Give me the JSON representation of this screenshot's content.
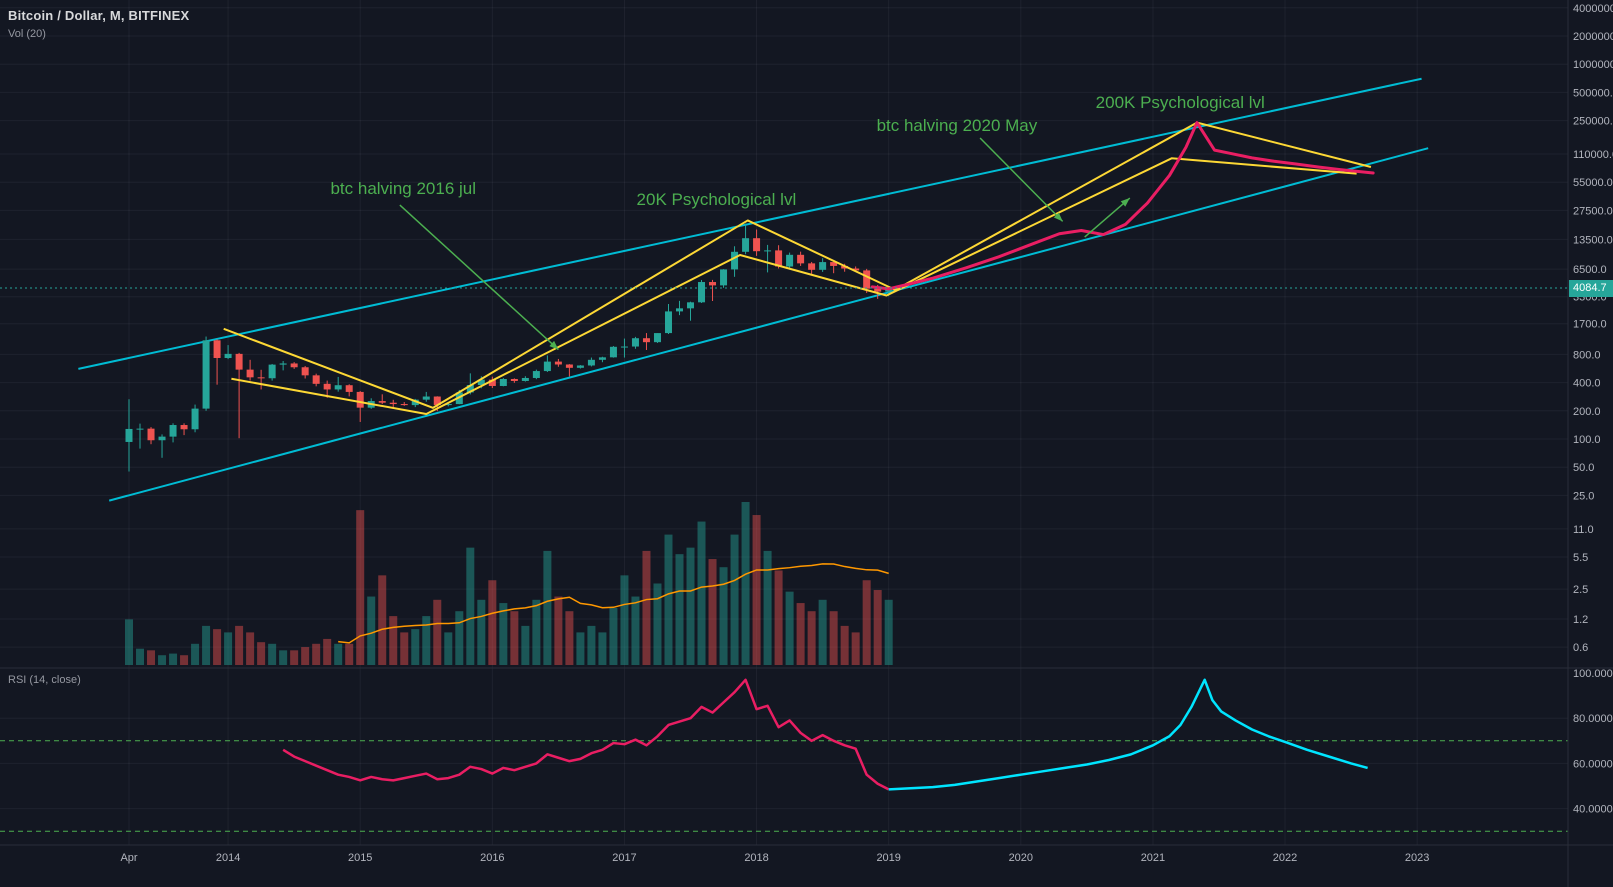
{
  "header": {
    "symbol_title": "Bitcoin / Dollar, M, BITFINEX",
    "indicator_label": "Vol (20)"
  },
  "rsi_header": {
    "label": "RSI (14, close)"
  },
  "last_price": {
    "value": "4084.7"
  },
  "colors": {
    "background": "#131722",
    "grid": "rgba(240,243,250,0.055)",
    "axis_text": "#b2b5be",
    "up": "#26a69a",
    "down": "#ef5350",
    "volume_up": "rgba(38,166,154,0.45)",
    "volume_down": "rgba(239,83,80,0.45)",
    "volume_ma": "#ff9800",
    "channel": "#00bcd4",
    "pattern": "#fdd835",
    "projection": "#e91e63",
    "rsi_line": "#e91e63",
    "rsi_projection": "#00e5ff",
    "rsi_levels": "#4caf50",
    "annotation": "#4caf50",
    "last_price_line": "#26a69a",
    "badge_bg": "#26a69a",
    "badge_text": "#ffffff",
    "separator": "#2a2e39"
  },
  "price_axis_labels": [
    "4000000.0",
    "2000000.0",
    "1000000.0",
    "500000.0",
    "250000.0",
    "110000.0",
    "55000.0",
    "27500.0",
    "13500.0",
    "6500.0",
    "3300.0",
    "1700.0",
    "800.0",
    "400.0",
    "200.0",
    "100.0",
    "50.0",
    "25.0",
    "11.0",
    "5.5",
    "2.5",
    "1.2",
    "0.6"
  ],
  "rsi_axis_labels": [
    {
      "text": "100.0000",
      "v": 100
    },
    {
      "text": "80.0000",
      "v": 80
    },
    {
      "text": "60.0000",
      "v": 60
    },
    {
      "text": "40.0000",
      "v": 40
    }
  ],
  "time_axis": {
    "labels": [
      {
        "text": "Apr",
        "t": 0
      },
      {
        "text": "2014",
        "t": 9
      },
      {
        "text": "2015",
        "t": 21
      },
      {
        "text": "2016",
        "t": 33
      },
      {
        "text": "2017",
        "t": 45
      },
      {
        "text": "2018",
        "t": 57
      },
      {
        "text": "2019",
        "t": 69
      },
      {
        "text": "2020",
        "t": 81
      },
      {
        "text": "2021",
        "t": 93
      },
      {
        "text": "2022",
        "t": 105
      },
      {
        "text": "2023",
        "t": 117
      }
    ]
  },
  "chart_data": {
    "type": "candlestick",
    "title": "Bitcoin / Dollar, M, BITFINEX",
    "scale": "log",
    "start": "2013-04",
    "interval": "1 month",
    "ohlc": [
      [
        93,
        266,
        45,
        128
      ],
      [
        128,
        146,
        79,
        129
      ],
      [
        129,
        134,
        88,
        97
      ],
      [
        97,
        112,
        63,
        106
      ],
      [
        106,
        147,
        92,
        141
      ],
      [
        141,
        147,
        110,
        127
      ],
      [
        127,
        233,
        118,
        211
      ],
      [
        211,
        1240,
        200,
        1130
      ],
      [
        1130,
        1160,
        380,
        732
      ],
      [
        732,
        1005,
        712,
        810
      ],
      [
        810,
        830,
        102,
        550
      ],
      [
        550,
        700,
        420,
        455
      ],
      [
        455,
        548,
        338,
        445
      ],
      [
        445,
        632,
        420,
        622
      ],
      [
        622,
        680,
        540,
        640
      ],
      [
        640,
        662,
        560,
        583
      ],
      [
        583,
        602,
        442,
        478
      ],
      [
        478,
        498,
        365,
        388
      ],
      [
        388,
        420,
        275,
        338
      ],
      [
        338,
        460,
        320,
        375
      ],
      [
        375,
        384,
        285,
        318
      ],
      [
        318,
        325,
        152,
        216
      ],
      [
        216,
        272,
        210,
        254
      ],
      [
        254,
        300,
        236,
        244
      ],
      [
        244,
        262,
        210,
        236
      ],
      [
        236,
        248,
        226,
        230
      ],
      [
        230,
        268,
        219,
        263
      ],
      [
        263,
        318,
        250,
        284
      ],
      [
        284,
        286,
        198,
        230
      ],
      [
        230,
        247,
        223,
        236
      ],
      [
        236,
        334,
        235,
        314
      ],
      [
        314,
        502,
        299,
        377
      ],
      [
        377,
        467,
        348,
        430
      ],
      [
        430,
        463,
        350,
        368
      ],
      [
        368,
        448,
        365,
        437
      ],
      [
        437,
        444,
        398,
        416
      ],
      [
        416,
        468,
        410,
        448
      ],
      [
        448,
        550,
        435,
        531
      ],
      [
        531,
        780,
        519,
        670
      ],
      [
        670,
        715,
        590,
        624
      ],
      [
        624,
        630,
        465,
        575
      ],
      [
        575,
        615,
        565,
        609
      ],
      [
        609,
        740,
        595,
        700
      ],
      [
        700,
        755,
        660,
        744
      ],
      [
        744,
        982,
        738,
        964
      ],
      [
        964,
        1180,
        740,
        970
      ],
      [
        970,
        1230,
        918,
        1190
      ],
      [
        1190,
        1350,
        891,
        1080
      ],
      [
        1080,
        1343,
        1060,
        1350
      ],
      [
        1350,
        2760,
        1320,
        2300
      ],
      [
        2300,
        2980,
        2100,
        2480
      ],
      [
        2480,
        2920,
        1830,
        2875
      ],
      [
        2875,
        4980,
        2830,
        4735
      ],
      [
        4735,
        4988,
        2970,
        4360
      ],
      [
        4360,
        6500,
        4110,
        6450
      ],
      [
        6450,
        11400,
        5380,
        9950
      ],
      [
        9950,
        19891,
        9380,
        13900
      ],
      [
        13900,
        17200,
        9000,
        10100
      ],
      [
        10100,
        11790,
        6000,
        10300
      ],
      [
        10300,
        11700,
        6600,
        6930
      ],
      [
        6930,
        9760,
        6420,
        9240
      ],
      [
        9240,
        9990,
        7030,
        7490
      ],
      [
        7490,
        7750,
        5770,
        6390
      ],
      [
        6390,
        8500,
        6070,
        7730
      ],
      [
        7730,
        7760,
        5880,
        7030
      ],
      [
        7030,
        7410,
        6100,
        6600
      ],
      [
        6600,
        6940,
        6200,
        6300
      ],
      [
        6300,
        6540,
        3620,
        4020
      ],
      [
        4020,
        4410,
        3130,
        3740
      ],
      [
        3740,
        4190,
        3350,
        4084.7
      ]
    ],
    "volume": [
      0.28,
      0.1,
      0.09,
      0.06,
      0.07,
      0.06,
      0.13,
      0.24,
      0.22,
      0.2,
      0.24,
      0.2,
      0.14,
      0.13,
      0.09,
      0.09,
      0.11,
      0.13,
      0.16,
      0.13,
      0.13,
      0.95,
      0.42,
      0.55,
      0.3,
      0.2,
      0.22,
      0.3,
      0.4,
      0.2,
      0.33,
      0.72,
      0.4,
      0.52,
      0.38,
      0.33,
      0.24,
      0.4,
      0.7,
      0.42,
      0.33,
      0.2,
      0.24,
      0.2,
      0.35,
      0.55,
      0.42,
      0.7,
      0.5,
      0.8,
      0.68,
      0.72,
      0.88,
      0.65,
      0.6,
      0.8,
      1.0,
      0.92,
      0.7,
      0.58,
      0.45,
      0.38,
      0.33,
      0.4,
      0.33,
      0.24,
      0.2,
      0.52,
      0.46,
      0.4
    ],
    "volume_ma_period": 20,
    "overlays": {
      "channel_upper": [
        [
          -4.6,
          560
        ],
        [
          117.4,
          700000
        ]
      ],
      "channel_lower": [
        [
          -1.8,
          22
        ],
        [
          118.0,
          127000
        ]
      ],
      "zigzag_a": [
        [
          8.6,
          1500
        ],
        [
          27.6,
          215
        ],
        [
          56.2,
          21500
        ],
        [
          69.6,
          3900
        ],
        [
          97.0,
          238000
        ],
        [
          112.8,
          80000
        ]
      ],
      "zigzag_b": [
        [
          9.3,
          440
        ],
        [
          27.0,
          185
        ],
        [
          55.5,
          9200
        ],
        [
          68.8,
          3400
        ],
        [
          94.7,
          99000
        ],
        [
          111.5,
          68000
        ]
      ],
      "projection": [
        [
          67.5,
          4200
        ],
        [
          69,
          4000
        ],
        [
          70.5,
          4400
        ],
        [
          73,
          5200
        ],
        [
          76,
          6700
        ],
        [
          79,
          8800
        ],
        [
          82,
          12000
        ],
        [
          84.5,
          15500
        ],
        [
          86.5,
          16800
        ],
        [
          88.5,
          15200
        ],
        [
          90.5,
          19500
        ],
        [
          92.5,
          33000
        ],
        [
          94.5,
          65000
        ],
        [
          96,
          130000
        ],
        [
          97,
          238000
        ],
        [
          98.6,
          121000
        ],
        [
          100,
          112000
        ],
        [
          102,
          100000
        ],
        [
          104,
          92000
        ],
        [
          106,
          86000
        ],
        [
          108,
          80000
        ],
        [
          110,
          75000
        ],
        [
          112,
          71000
        ],
        [
          113,
          69000
        ]
      ]
    },
    "annotations": [
      {
        "text": "btc halving 2016 jul",
        "t": 18.3,
        "price": 41000
      },
      {
        "text": "20K Psychological lvl",
        "t": 46.1,
        "price": 31400
      },
      {
        "text": "btc halving 2020 May",
        "t": 67.9,
        "price": 193000
      },
      {
        "text": "200K Psychological lvl",
        "t": 87.8,
        "price": 340000
      }
    ],
    "arrows": [
      {
        "from": [
          24.6,
          31400
        ],
        "to": [
          39.0,
          900
        ]
      },
      {
        "from": [
          77.3,
          163000
        ],
        "to": [
          84.8,
          21000
        ]
      },
      {
        "from": [
          86.8,
          14300
        ],
        "to": [
          90.9,
          37300
        ]
      }
    ],
    "rsi": {
      "period": 14,
      "source": "close",
      "levels": [
        70,
        30
      ],
      "historic": [
        [
          14,
          66
        ],
        [
          15,
          63
        ],
        [
          16,
          61
        ],
        [
          17,
          59
        ],
        [
          18,
          57
        ],
        [
          19,
          55
        ],
        [
          20,
          54
        ],
        [
          21,
          52.5
        ],
        [
          22,
          54
        ],
        [
          23,
          53
        ],
        [
          24,
          52.5
        ],
        [
          25,
          53.5
        ],
        [
          26,
          54.5
        ],
        [
          27,
          55.5
        ],
        [
          28,
          53
        ],
        [
          29,
          53.5
        ],
        [
          30,
          55
        ],
        [
          31,
          58.5
        ],
        [
          32,
          57.5
        ],
        [
          33,
          55.5
        ],
        [
          34,
          58
        ],
        [
          35,
          57
        ],
        [
          36,
          58.5
        ],
        [
          37,
          60
        ],
        [
          38,
          64
        ],
        [
          39,
          62.5
        ],
        [
          40,
          61
        ],
        [
          41,
          62
        ],
        [
          42,
          64.5
        ],
        [
          43,
          66
        ],
        [
          44,
          69
        ],
        [
          45,
          68.5
        ],
        [
          46,
          70.5
        ],
        [
          47,
          68
        ],
        [
          48,
          72
        ],
        [
          49,
          77
        ],
        [
          50,
          78.5
        ],
        [
          51,
          80
        ],
        [
          52,
          85
        ],
        [
          53,
          82.5
        ],
        [
          54,
          87
        ],
        [
          55,
          91.5
        ],
        [
          56,
          97
        ],
        [
          57,
          84
        ],
        [
          58,
          85.5
        ],
        [
          59,
          76
        ],
        [
          60,
          79
        ],
        [
          61,
          73.5
        ],
        [
          62,
          70
        ],
        [
          63,
          72.5
        ],
        [
          64,
          70
        ],
        [
          65,
          68
        ],
        [
          66,
          66.5
        ],
        [
          67,
          55
        ],
        [
          68,
          51
        ],
        [
          69,
          48.5
        ]
      ],
      "projection": [
        [
          69,
          48.5
        ],
        [
          71,
          49
        ],
        [
          73,
          49.5
        ],
        [
          75,
          50.5
        ],
        [
          77,
          52
        ],
        [
          79,
          53.5
        ],
        [
          81,
          55
        ],
        [
          83,
          56.5
        ],
        [
          85,
          58
        ],
        [
          87,
          59.5
        ],
        [
          89,
          61.5
        ],
        [
          91,
          64
        ],
        [
          93,
          68
        ],
        [
          94.5,
          72
        ],
        [
          95.5,
          77
        ],
        [
          96.5,
          85
        ],
        [
          97.3,
          93
        ],
        [
          97.7,
          97
        ],
        [
          98.4,
          88
        ],
        [
          99.2,
          83
        ],
        [
          100.5,
          79
        ],
        [
          102,
          75
        ],
        [
          103.5,
          72
        ],
        [
          105,
          69.5
        ],
        [
          107,
          66
        ],
        [
          109,
          63
        ],
        [
          111,
          60
        ],
        [
          112.5,
          58
        ]
      ]
    }
  }
}
